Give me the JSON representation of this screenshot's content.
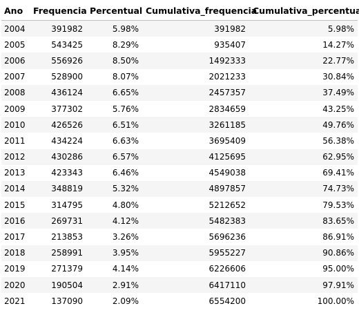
{
  "table": {
    "columns": [
      "Ano",
      "Frequencia",
      "Percentual",
      "Cumulativa_frequencia",
      "Cumulativa_percentual"
    ],
    "rows": [
      [
        "2004",
        "391982",
        "5.98%",
        "391982",
        "5.98%"
      ],
      [
        "2005",
        "543425",
        "8.29%",
        "935407",
        "14.27%"
      ],
      [
        "2006",
        "556926",
        "8.50%",
        "1492333",
        "22.77%"
      ],
      [
        "2007",
        "528900",
        "8.07%",
        "2021233",
        "30.84%"
      ],
      [
        "2008",
        "436124",
        "6.65%",
        "2457357",
        "37.49%"
      ],
      [
        "2009",
        "377302",
        "5.76%",
        "2834659",
        "43.25%"
      ],
      [
        "2010",
        "426526",
        "6.51%",
        "3261185",
        "49.76%"
      ],
      [
        "2011",
        "434224",
        "6.63%",
        "3695409",
        "56.38%"
      ],
      [
        "2012",
        "430286",
        "6.57%",
        "4125695",
        "62.95%"
      ],
      [
        "2013",
        "423343",
        "6.46%",
        "4549038",
        "69.41%"
      ],
      [
        "2014",
        "348819",
        "5.32%",
        "4897857",
        "74.73%"
      ],
      [
        "2015",
        "314795",
        "4.80%",
        "5212652",
        "79.53%"
      ],
      [
        "2016",
        "269731",
        "4.12%",
        "5482383",
        "83.65%"
      ],
      [
        "2017",
        "213853",
        "3.26%",
        "5696236",
        "86.91%"
      ],
      [
        "2018",
        "258991",
        "3.95%",
        "5955227",
        "90.86%"
      ],
      [
        "2019",
        "271379",
        "4.14%",
        "6226606",
        "95.00%"
      ],
      [
        "2020",
        "190504",
        "2.91%",
        "6417110",
        "97.91%"
      ],
      [
        "2021",
        "137090",
        "2.09%",
        "6554200",
        "100.00%"
      ]
    ]
  }
}
